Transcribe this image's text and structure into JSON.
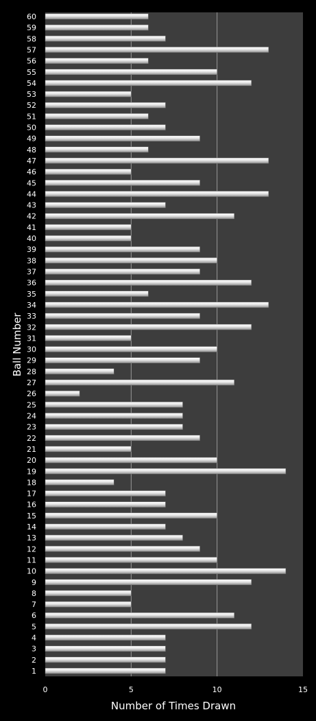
{
  "chart_data": {
    "type": "bar",
    "orientation": "horizontal",
    "title": "",
    "xlabel": "Number of Times Drawn",
    "ylabel": "Ball Number",
    "xlim": [
      0,
      15
    ],
    "xticks": [
      0,
      5,
      10,
      15
    ],
    "grid": true,
    "legend": "none",
    "colors": {
      "background": "#000000",
      "plot_area": "#3d3d3d",
      "gridline": "#9a9a9a",
      "bar_light": "#ffffff",
      "bar_dark": "#8f8f8f",
      "text": "#ffffff"
    },
    "categories": [
      "1",
      "2",
      "3",
      "4",
      "5",
      "6",
      "7",
      "8",
      "9",
      "10",
      "11",
      "12",
      "13",
      "14",
      "15",
      "16",
      "17",
      "18",
      "19",
      "20",
      "21",
      "22",
      "23",
      "24",
      "25",
      "26",
      "27",
      "28",
      "29",
      "30",
      "31",
      "32",
      "33",
      "34",
      "35",
      "36",
      "37",
      "38",
      "39",
      "40",
      "41",
      "42",
      "43",
      "44",
      "45",
      "46",
      "47",
      "48",
      "49",
      "50",
      "51",
      "52",
      "53",
      "54",
      "55",
      "56",
      "57",
      "58",
      "59",
      "60"
    ],
    "values": [
      7,
      7,
      7,
      7,
      12,
      11,
      5,
      5,
      12,
      14,
      10,
      9,
      8,
      7,
      10,
      7,
      7,
      4,
      14,
      10,
      5,
      9,
      8,
      8,
      8,
      2,
      11,
      4,
      9,
      10,
      5,
      12,
      9,
      13,
      6,
      12,
      9,
      10,
      9,
      5,
      5,
      11,
      7,
      13,
      9,
      5,
      13,
      6,
      9,
      7,
      6,
      7,
      5,
      12,
      10,
      6,
      13,
      7,
      6,
      6
    ]
  }
}
